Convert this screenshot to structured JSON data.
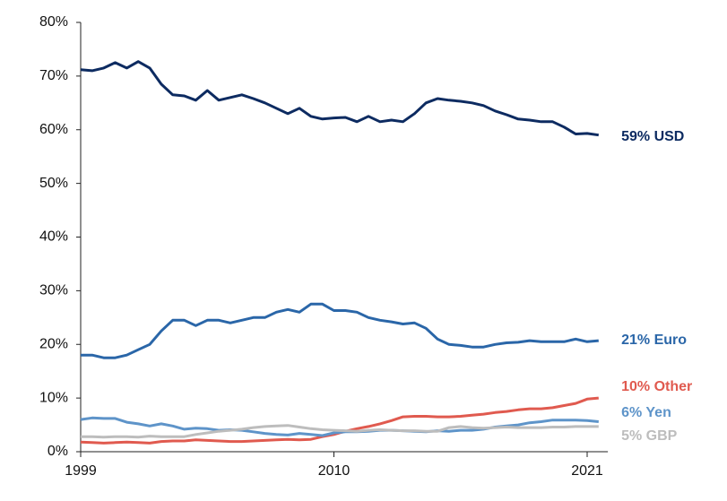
{
  "chart_data": {
    "type": "line",
    "x": [
      1999,
      1999.5,
      2000,
      2000.5,
      2001,
      2001.5,
      2002,
      2002.5,
      2003,
      2003.5,
      2004,
      2004.5,
      2005,
      2005.5,
      2006,
      2006.5,
      2007,
      2007.5,
      2008,
      2008.5,
      2009,
      2009.5,
      2010,
      2010.5,
      2011,
      2011.5,
      2012,
      2012.5,
      2013,
      2013.5,
      2014,
      2014.5,
      2015,
      2015.5,
      2016,
      2016.5,
      2017,
      2017.5,
      2018,
      2018.5,
      2019,
      2019.5,
      2020,
      2020.5,
      2021,
      2021.5
    ],
    "series": [
      {
        "name": "59% USD",
        "color": "#0d2b61",
        "values": [
          71.2,
          71,
          71.5,
          72.5,
          71.5,
          72.7,
          71.5,
          68.5,
          66.5,
          66.3,
          65.5,
          67.3,
          65.5,
          66,
          66.5,
          65.8,
          65,
          64,
          63,
          64,
          62.5,
          62,
          62.2,
          62.3,
          61.5,
          62.5,
          61.5,
          61.8,
          61.5,
          63,
          65,
          65.8,
          65.5,
          65.3,
          65,
          64.5,
          63.5,
          62.8,
          62,
          61.8,
          61.5,
          61.5,
          60.5,
          59.2,
          59.3,
          59
        ]
      },
      {
        "name": "21% Euro",
        "color": "#2a66a8",
        "values": [
          18,
          18,
          17.5,
          17.5,
          18,
          19,
          20,
          22.5,
          24.5,
          24.5,
          23.5,
          24.5,
          24.5,
          24,
          24.5,
          25,
          25,
          26,
          26.5,
          26,
          27.5,
          27.5,
          26.3,
          26.3,
          26,
          25,
          24.5,
          24.2,
          23.8,
          24,
          23,
          21,
          20,
          19.8,
          19.5,
          19.5,
          20,
          20.3,
          20.4,
          20.7,
          20.5,
          20.5,
          20.5,
          21,
          20.5,
          20.7
        ]
      },
      {
        "name": "10% Other",
        "color": "#e05a4f",
        "values": [
          1.8,
          1.7,
          1.6,
          1.7,
          1.8,
          1.7,
          1.6,
          1.9,
          2.0,
          2.0,
          2.2,
          2.1,
          2.0,
          1.9,
          1.9,
          2.0,
          2.1,
          2.2,
          2.3,
          2.2,
          2.3,
          2.8,
          3.2,
          3.8,
          4.3,
          4.7,
          5.2,
          5.8,
          6.5,
          6.6,
          6.6,
          6.5,
          6.5,
          6.6,
          6.8,
          7.0,
          7.3,
          7.5,
          7.8,
          8.0,
          8.0,
          8.2,
          8.6,
          9.0,
          9.8,
          10.0
        ]
      },
      {
        "name": "6% Yen",
        "color": "#5e94c9",
        "values": [
          6,
          6.3,
          6.2,
          6.2,
          5.5,
          5.2,
          4.8,
          5.2,
          4.8,
          4.2,
          4.4,
          4.3,
          4.0,
          4.1,
          4.0,
          3.7,
          3.4,
          3.2,
          3.1,
          3.4,
          3.2,
          3.0,
          3.5,
          3.7,
          3.7,
          3.8,
          4.0,
          4.0,
          3.9,
          3.8,
          3.7,
          3.9,
          3.8,
          4.0,
          4.0,
          4.2,
          4.6,
          4.8,
          5.0,
          5.4,
          5.6,
          5.9,
          5.9,
          5.9,
          5.8,
          5.6
        ]
      },
      {
        "name": "5% GBP",
        "color": "#bdbdbd",
        "values": [
          2.8,
          2.8,
          2.7,
          2.8,
          2.8,
          2.7,
          2.9,
          2.8,
          2.8,
          2.8,
          3.2,
          3.5,
          3.8,
          4.0,
          4.2,
          4.5,
          4.7,
          4.8,
          4.9,
          4.6,
          4.3,
          4.1,
          4.0,
          3.9,
          3.8,
          4.0,
          4.1,
          4.0,
          3.9,
          3.9,
          3.8,
          3.8,
          4.5,
          4.7,
          4.5,
          4.4,
          4.5,
          4.6,
          4.5,
          4.5,
          4.5,
          4.6,
          4.6,
          4.7,
          4.7,
          4.7
        ]
      }
    ],
    "xlim": [
      1999,
      2021.9
    ],
    "xticks": [
      1999,
      2010,
      2021
    ],
    "ylim": [
      0,
      80
    ],
    "yticks": [
      {
        "value": 0,
        "label": "0%"
      },
      {
        "value": 10,
        "label": "10%"
      },
      {
        "value": 20,
        "label": "20%"
      },
      {
        "value": 30,
        "label": "30%"
      },
      {
        "value": 40,
        "label": "40%"
      },
      {
        "value": 50,
        "label": "50%"
      },
      {
        "value": 60,
        "label": "60%"
      },
      {
        "value": 70,
        "label": "70%"
      },
      {
        "value": 80,
        "label": "80%"
      }
    ]
  }
}
